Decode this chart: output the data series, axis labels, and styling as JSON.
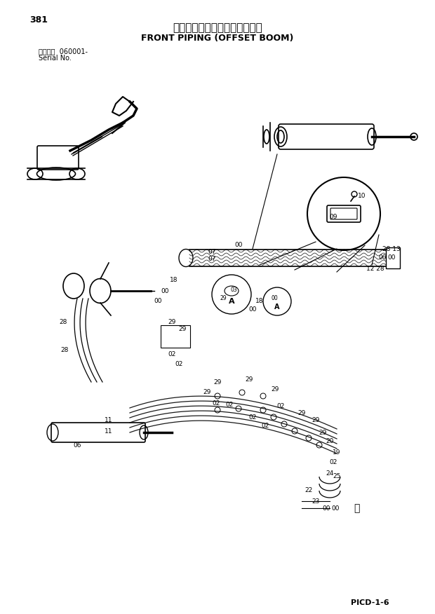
{
  "page_number": "381",
  "title_japanese": "フロント配管（側溝掘ブーム）",
  "title_english": "FRONT PIPING (OFFSET BOOM)",
  "serial_label": "適用号機  060001-",
  "serial_sub": "Serial No.",
  "page_code": "PICD-1-6",
  "bg_color": "#ffffff",
  "text_color": "#000000",
  "fig_width": 6.2,
  "fig_height": 8.76,
  "dpi": 100
}
